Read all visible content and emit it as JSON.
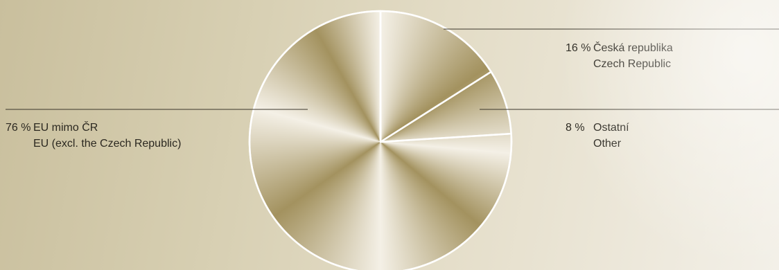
{
  "chart_data": {
    "type": "pie",
    "start_angle_deg": 0,
    "direction": "clockwise",
    "slices": [
      {
        "value": 16,
        "pct_label": "16 %",
        "label": "Česká republika",
        "label_en": "Czech Republic"
      },
      {
        "value": 8,
        "pct_label": "8 %",
        "label": "Ostatní",
        "label_en": "Other"
      },
      {
        "value": 76,
        "pct_label": "76 %",
        "label": "EU mimo ČR",
        "label_en": "EU (excl. the Czech Republic)"
      }
    ]
  },
  "colors": {
    "slice_dark": "#a3925f",
    "slice_light": "#f4f0e6",
    "slice_border": "#ffffff",
    "leader_line": "#3a352a"
  }
}
